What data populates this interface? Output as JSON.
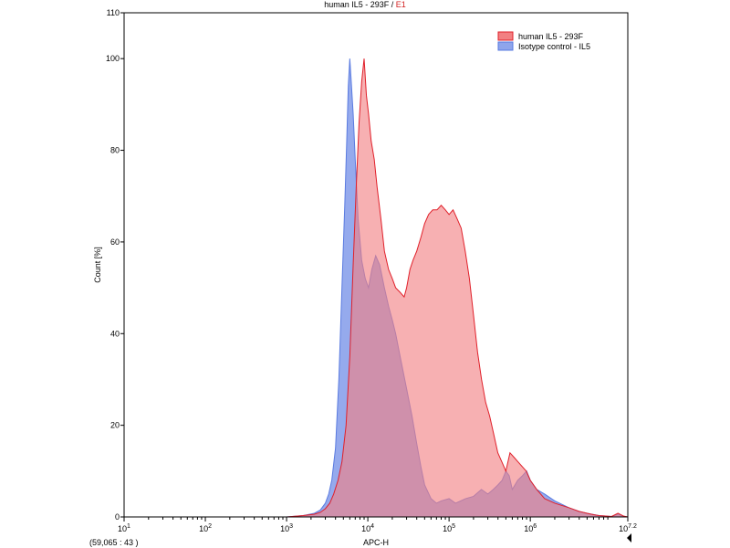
{
  "chart_data": {
    "type": "area",
    "title_main": "human IL5 - 293F / ",
    "title_gate": "E1",
    "xlabel": "APC-H",
    "ylabel": "Count [%]",
    "x_scale": "log",
    "xlim": [
      10,
      15848932
    ],
    "ylim": [
      0,
      110
    ],
    "yticks": [
      0,
      20,
      40,
      60,
      80,
      100,
      110
    ],
    "xticks": [
      {
        "value": 10,
        "base": "10",
        "exp": "1"
      },
      {
        "value": 100,
        "base": "10",
        "exp": "2"
      },
      {
        "value": 1000,
        "base": "10",
        "exp": "3"
      },
      {
        "value": 10000,
        "base": "10",
        "exp": "4"
      },
      {
        "value": 100000,
        "base": "10",
        "exp": "5"
      },
      {
        "value": 1000000,
        "base": "10",
        "exp": "6"
      },
      {
        "value": 15848932,
        "base": "10",
        "exp": "7.2"
      }
    ],
    "cursor_readout": "(59,065 : 43 )",
    "legend_position": "top-right",
    "grid": false,
    "series": [
      {
        "name": "Isotype control - IL5",
        "fill": "#8fa5ec",
        "stroke": "#5a7be0",
        "x": [
          100,
          1000,
          1600,
          2200,
          2600,
          3000,
          3300,
          3600,
          4000,
          4400,
          4800,
          5200,
          5500,
          5750,
          6000,
          6200,
          6600,
          7000,
          7600,
          8400,
          9300,
          10200,
          11200,
          12500,
          14000,
          16000,
          18000,
          20000,
          22000,
          25000,
          30000,
          35000,
          40000,
          45000,
          50000,
          60000,
          70000,
          80000,
          100000,
          120000,
          160000,
          200000,
          250000,
          300000,
          350000,
          400000,
          450000,
          500000,
          550000,
          600000,
          700000,
          800000,
          900000,
          1000000,
          1200000,
          1500000,
          2000000,
          3000000,
          4000000,
          5000000,
          7000000,
          8500000,
          10000000,
          12000000,
          14000000,
          15848932
        ],
        "y": [
          0,
          0,
          0.3,
          0.8,
          1.5,
          3,
          5,
          8,
          15,
          30,
          50,
          68,
          82,
          94,
          100,
          96,
          88,
          78,
          65,
          56,
          52,
          50,
          54,
          57,
          55,
          50,
          46,
          43,
          40,
          35,
          28,
          22,
          16,
          11,
          7,
          4,
          3,
          3.5,
          4,
          3,
          4,
          4.5,
          6,
          5,
          6,
          7,
          8,
          10,
          9,
          6,
          8,
          9,
          10,
          8,
          6,
          5,
          3.5,
          2,
          1.2,
          0.8,
          0.3,
          0.2,
          0.1,
          0.6,
          0.1,
          0
        ]
      },
      {
        "name": "human IL5 - 293F",
        "fill": "#f28082",
        "stroke": "#e0202a",
        "x": [
          100,
          1000,
          1600,
          2200,
          2600,
          3000,
          3400,
          3800,
          4300,
          4800,
          5400,
          6000,
          6600,
          7200,
          7800,
          8400,
          9000,
          9600,
          10200,
          11000,
          12000,
          13000,
          14500,
          16000,
          18000,
          20000,
          22000,
          25000,
          28000,
          30000,
          33000,
          36000,
          40000,
          45000,
          50000,
          56000,
          63000,
          71000,
          80000,
          90000,
          100000,
          112000,
          126000,
          141000,
          158000,
          178000,
          200000,
          224000,
          251000,
          282000,
          316000,
          355000,
          398000,
          447000,
          500000,
          562000,
          631000,
          708000,
          794000,
          891000,
          1000000,
          1200000,
          1500000,
          2000000,
          3000000,
          4000000,
          5000000,
          6000000,
          7000000,
          8500000,
          10000000,
          12000000,
          14000000,
          15848932
        ],
        "y": [
          0,
          0,
          0.3,
          0.6,
          1,
          1.8,
          3,
          5,
          8,
          12,
          20,
          35,
          55,
          72,
          86,
          95,
          100,
          92,
          88,
          82,
          78,
          72,
          65,
          58,
          54,
          52,
          50,
          49,
          48,
          50,
          54,
          56,
          58,
          61,
          64,
          66,
          67,
          67,
          68,
          67,
          66,
          67,
          65,
          63,
          58,
          52,
          44,
          36,
          30,
          25,
          22,
          18,
          14,
          12,
          10,
          14,
          13,
          12,
          11,
          10,
          8,
          6,
          4,
          3,
          2,
          1.2,
          0.8,
          0.5,
          0.3,
          0.2,
          0.1,
          0.8,
          0.2,
          0
        ]
      }
    ]
  }
}
